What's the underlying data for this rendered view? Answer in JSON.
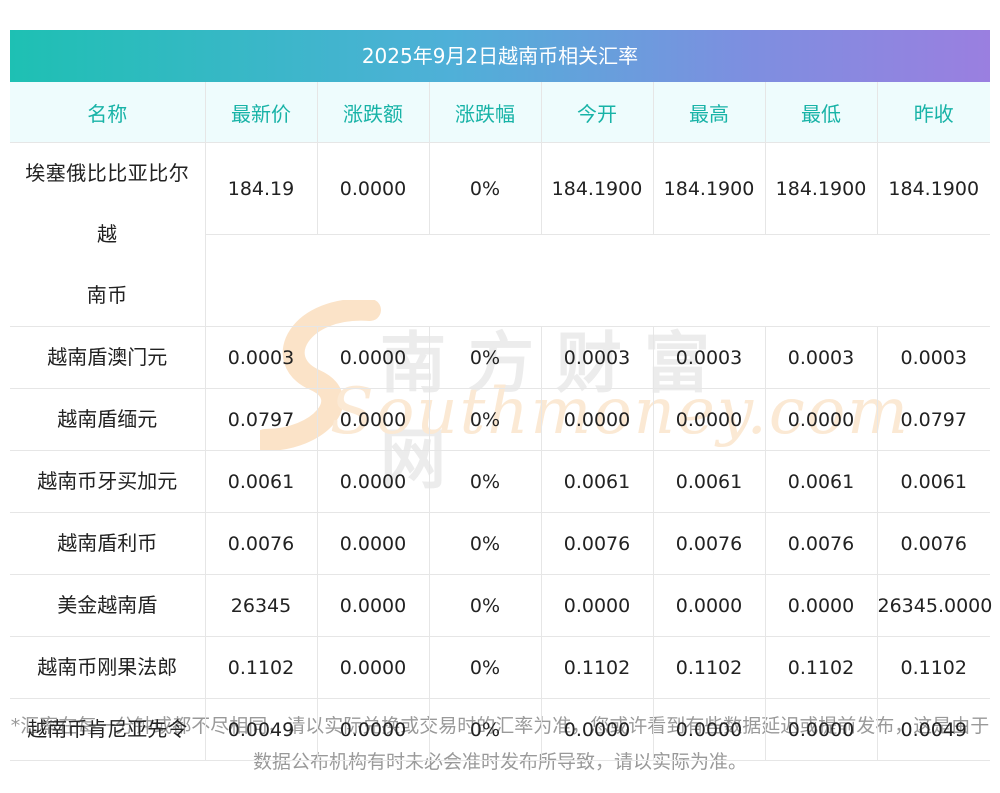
{
  "title": "2025年9月2日越南币相关汇率",
  "headers": [
    "名称",
    "最新价",
    "涨跌额",
    "涨跌幅",
    "今开",
    "最高",
    "最低",
    "昨收"
  ],
  "rows": [
    {
      "name": "埃塞俄比比亚比尔越南币",
      "name_line1": "埃塞俄比比亚比尔越",
      "name_line2": "南币",
      "latest": "184.19",
      "change": "0.0000",
      "change_pct": "0%",
      "open": "184.1900",
      "high": "184.1900",
      "low": "184.1900",
      "prev_close": "184.1900"
    },
    {
      "name": "越南盾澳门元",
      "latest": "0.0003",
      "change": "0.0000",
      "change_pct": "0%",
      "open": "0.0003",
      "high": "0.0003",
      "low": "0.0003",
      "prev_close": "0.0003"
    },
    {
      "name": "越南盾缅元",
      "latest": "0.0797",
      "change": "0.0000",
      "change_pct": "0%",
      "open": "0.0000",
      "high": "0.0000",
      "low": "0.0000",
      "prev_close": "0.0797"
    },
    {
      "name": "越南币牙买加元",
      "latest": "0.0061",
      "change": "0.0000",
      "change_pct": "0%",
      "open": "0.0061",
      "high": "0.0061",
      "low": "0.0061",
      "prev_close": "0.0061"
    },
    {
      "name": "越南盾利币",
      "latest": "0.0076",
      "change": "0.0000",
      "change_pct": "0%",
      "open": "0.0076",
      "high": "0.0076",
      "low": "0.0076",
      "prev_close": "0.0076"
    },
    {
      "name": "美金越南盾",
      "latest": "26345",
      "change": "0.0000",
      "change_pct": "0%",
      "open": "0.0000",
      "high": "0.0000",
      "low": "0.0000",
      "prev_close": "26345.0000"
    },
    {
      "name": "越南币刚果法郎",
      "latest": "0.1102",
      "change": "0.0000",
      "change_pct": "0%",
      "open": "0.1102",
      "high": "0.1102",
      "low": "0.1102",
      "prev_close": "0.1102"
    },
    {
      "name": "越南币肯尼亚先令",
      "latest": "0.0049",
      "change": "0.0000",
      "change_pct": "0%",
      "open": "0.0000",
      "high": "0.0000",
      "low": "0.0000",
      "prev_close": "0.0049"
    }
  ],
  "watermark": {
    "cn": "南方财富网",
    "en": "Southmoney.com"
  },
  "footnote": "*汇率在每一分钟或都不尽相同，请以实际兑换或交易时的汇率为准，您或许看到有些数据延迟或提前发布，这是由于数据公布机构有时未必会准时发布所导致，请以实际为准。",
  "colors": {
    "header_text": "#18b3a7",
    "header_bg": "#eefcfd",
    "title_gradient_start": "#1ec0b3",
    "title_gradient_end": "#9a7fe0",
    "footnote": "#999999"
  }
}
